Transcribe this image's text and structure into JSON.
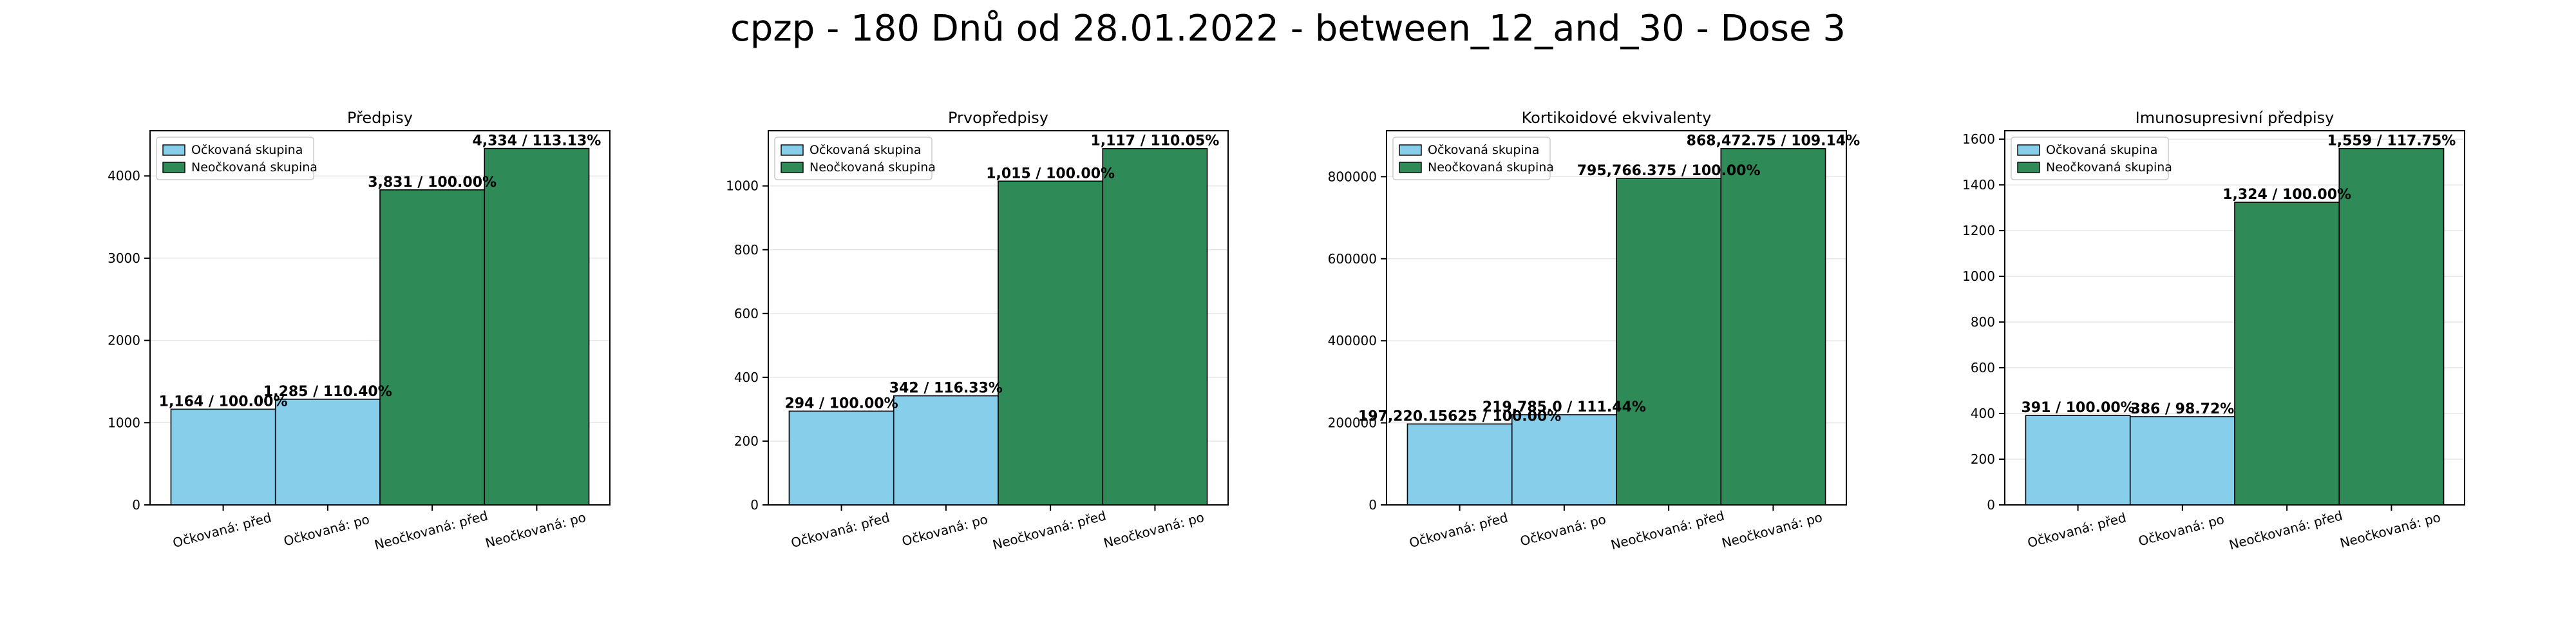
{
  "suptitle": "cpzp - 180 Dnů od 28.01.2022 - between_12_and_30 - Dose 3",
  "colors": {
    "vaccinated": "#87CEEB",
    "unvaccinated": "#2E8B57",
    "edge": "#000000"
  },
  "chart_data": [
    {
      "type": "bar",
      "title": "Předpisy",
      "categories": [
        "Očkovaná: před",
        "Očkovaná: po",
        "Neočkovaná: před",
        "Neočkovaná: po"
      ],
      "values": [
        1164,
        1285,
        3831,
        4334
      ],
      "bar_labels": [
        "1,164 / 100.00%",
        "1,285 / 110.40%",
        "3,831 / 100.00%",
        "4,334 / 113.13%"
      ],
      "groups": [
        "vaccinated",
        "vaccinated",
        "unvaccinated",
        "unvaccinated"
      ],
      "legend": [
        "Očkovaná skupina",
        "Neočkovaná skupina"
      ],
      "legend_loc": "upper-left",
      "ylim": [
        0,
        4550
      ],
      "yticks": [
        0,
        1000,
        2000,
        3000,
        4000
      ],
      "ytick_labels": [
        "0",
        "1000",
        "2000",
        "3000",
        "4000"
      ],
      "grid": true
    },
    {
      "type": "bar",
      "title": "Prvopředpisy",
      "categories": [
        "Očkovaná: před",
        "Očkovaná: po",
        "Neočkovaná: před",
        "Neočkovaná: po"
      ],
      "values": [
        294,
        342,
        1015,
        1117
      ],
      "bar_labels": [
        "294 / 100.00%",
        "342 / 116.33%",
        "1,015 / 100.00%",
        "1,117 / 110.05%"
      ],
      "groups": [
        "vaccinated",
        "vaccinated",
        "unvaccinated",
        "unvaccinated"
      ],
      "legend": [
        "Očkovaná skupina",
        "Neočkovaná skupina"
      ],
      "legend_loc": "upper-left",
      "ylim": [
        0,
        1173
      ],
      "yticks": [
        0,
        200,
        400,
        600,
        800,
        1000
      ],
      "ytick_labels": [
        "0",
        "200",
        "400",
        "600",
        "800",
        "1000"
      ],
      "grid": true
    },
    {
      "type": "bar",
      "title": "Kortikoidové ekvivalenty",
      "categories": [
        "Očkovaná: před",
        "Očkovaná: po",
        "Neočkovaná: před",
        "Neočkovaná: po"
      ],
      "values": [
        197220.15625,
        219785.0,
        795766.375,
        868472.75
      ],
      "bar_labels": [
        "197,220.15625 / 100.00%",
        "219,785.0 / 111.44%",
        "795,766.375 / 100.00%",
        "868,472.75 / 109.14%"
      ],
      "groups": [
        "vaccinated",
        "vaccinated",
        "unvaccinated",
        "unvaccinated"
      ],
      "legend": [
        "Očkovaná skupina",
        "Neočkovaná skupina"
      ],
      "legend_loc": "upper-left",
      "ylim": [
        0,
        912000
      ],
      "yticks": [
        0,
        200000,
        400000,
        600000,
        800000
      ],
      "ytick_labels": [
        "0",
        "200000",
        "400000",
        "600000",
        "800000"
      ],
      "grid": true
    },
    {
      "type": "bar",
      "title": "Imunosupresivní předpisy",
      "categories": [
        "Očkovaná: před",
        "Očkovaná: po",
        "Neočkovaná: před",
        "Neočkovaná: po"
      ],
      "values": [
        391,
        386,
        1324,
        1559
      ],
      "bar_labels": [
        "391 / 100.00%",
        "386 / 98.72%",
        "1,324 / 100.00%",
        "1,559 / 117.75%"
      ],
      "groups": [
        "vaccinated",
        "vaccinated",
        "unvaccinated",
        "unvaccinated"
      ],
      "legend": [
        "Očkovaná skupina",
        "Neočkovaná skupina"
      ],
      "legend_loc": "upper-left",
      "ylim": [
        0,
        1637
      ],
      "yticks": [
        0,
        200,
        400,
        600,
        800,
        1000,
        1200,
        1400,
        1600
      ],
      "ytick_labels": [
        "0",
        "200",
        "400",
        "600",
        "800",
        "1000",
        "1200",
        "1400",
        "1600"
      ],
      "grid": true
    }
  ]
}
